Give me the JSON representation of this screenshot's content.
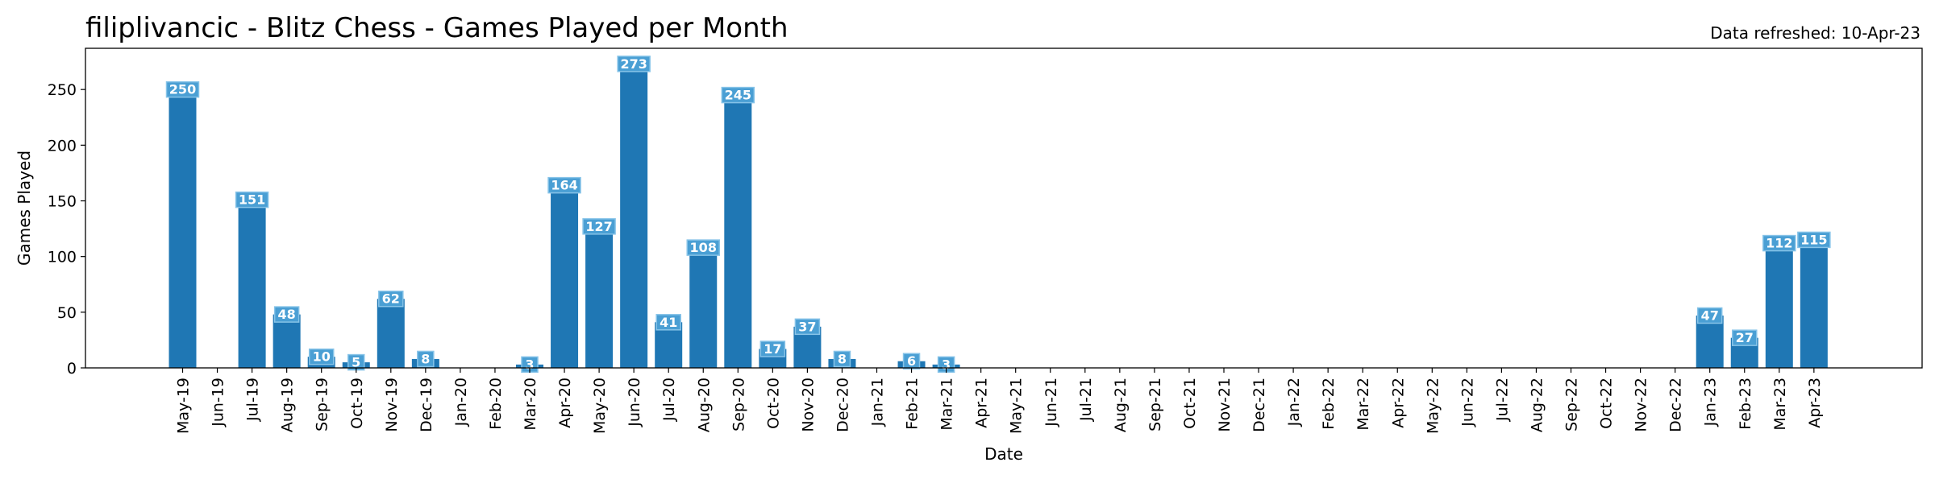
{
  "header": {
    "title": "filiplivancic - Blitz Chess - Games Played per Month",
    "refreshed": "Data refreshed: 10-Apr-23"
  },
  "colors": {
    "bar": "#1f77b4",
    "label_box": "#4a9fd4",
    "label_border": "#86c3e8"
  },
  "chart_data": {
    "type": "bar",
    "title": "filiplivancic - Blitz Chess - Games Played per Month",
    "xlabel": "Date",
    "ylabel": "Games Played",
    "ylim": [
      0,
      287
    ],
    "yticks": [
      0,
      50,
      100,
      150,
      200,
      250
    ],
    "grid": false,
    "categories": [
      "May-19",
      "Jun-19",
      "Jul-19",
      "Aug-19",
      "Sep-19",
      "Oct-19",
      "Nov-19",
      "Dec-19",
      "Jan-20",
      "Feb-20",
      "Mar-20",
      "Apr-20",
      "May-20",
      "Jun-20",
      "Jul-20",
      "Aug-20",
      "Sep-20",
      "Oct-20",
      "Nov-20",
      "Dec-20",
      "Jan-21",
      "Feb-21",
      "Mar-21",
      "Apr-21",
      "May-21",
      "Jun-21",
      "Jul-21",
      "Aug-21",
      "Sep-21",
      "Oct-21",
      "Nov-21",
      "Dec-21",
      "Jan-22",
      "Feb-22",
      "Mar-22",
      "Apr-22",
      "May-22",
      "Jun-22",
      "Jul-22",
      "Aug-22",
      "Sep-22",
      "Oct-22",
      "Nov-22",
      "Dec-22",
      "Jan-23",
      "Feb-23",
      "Mar-23",
      "Apr-23"
    ],
    "values": [
      250,
      0,
      151,
      48,
      10,
      5,
      62,
      8,
      0,
      0,
      3,
      164,
      127,
      273,
      41,
      108,
      245,
      17,
      37,
      8,
      0,
      6,
      3,
      0,
      0,
      0,
      0,
      0,
      0,
      0,
      0,
      0,
      0,
      0,
      0,
      0,
      0,
      0,
      0,
      0,
      0,
      0,
      0,
      0,
      47,
      27,
      112,
      115
    ]
  }
}
